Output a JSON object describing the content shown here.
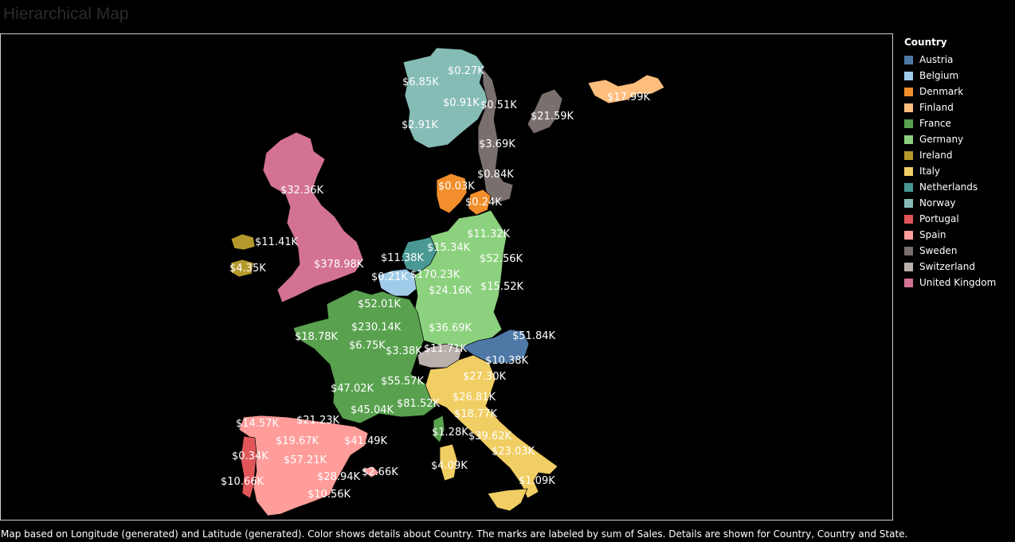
{
  "title": "Hierarchical Map",
  "legend": {
    "title": "Country",
    "items": [
      {
        "label": "Austria",
        "color": "#4e79a7"
      },
      {
        "label": "Belgium",
        "color": "#a0cbe8"
      },
      {
        "label": "Denmark",
        "color": "#f28e2b"
      },
      {
        "label": "Finland",
        "color": "#ffbe7d"
      },
      {
        "label": "France",
        "color": "#59a14f"
      },
      {
        "label": "Germany",
        "color": "#8cd17d"
      },
      {
        "label": "Ireland",
        "color": "#b6992d"
      },
      {
        "label": "Italy",
        "color": "#f1ce63"
      },
      {
        "label": "Netherlands",
        "color": "#499894"
      },
      {
        "label": "Norway",
        "color": "#86bcb6"
      },
      {
        "label": "Portugal",
        "color": "#e15759"
      },
      {
        "label": "Spain",
        "color": "#ff9d9a"
      },
      {
        "label": "Sweden",
        "color": "#79706e"
      },
      {
        "label": "Switzerland",
        "color": "#bab0ac"
      },
      {
        "label": "United Kingdom",
        "color": "#d37295"
      }
    ]
  },
  "map_labels": [
    {
      "country": "Finland",
      "text": "$17.99K"
    },
    {
      "country": "Norway",
      "text": "$0.27K"
    },
    {
      "country": "Norway",
      "text": "$6.85K"
    },
    {
      "country": "Norway",
      "text": "$0.91K"
    },
    {
      "country": "Norway",
      "text": "$2.91K"
    },
    {
      "country": "Sweden",
      "text": "$0.51K"
    },
    {
      "country": "Sweden",
      "text": "$21.59K"
    },
    {
      "country": "Sweden",
      "text": "$3.69K"
    },
    {
      "country": "Sweden",
      "text": "$0.84K"
    },
    {
      "country": "Denmark",
      "text": "$0.03K"
    },
    {
      "country": "Denmark",
      "text": "$0.24K"
    },
    {
      "country": "United Kingdom",
      "text": "$32.36K"
    },
    {
      "country": "United Kingdom",
      "text": "$378.98K"
    },
    {
      "country": "Ireland",
      "text": "$11.41K"
    },
    {
      "country": "Ireland",
      "text": "$4.35K"
    },
    {
      "country": "Netherlands",
      "text": "$11.38K"
    },
    {
      "country": "Germany",
      "text": "$15.34K"
    },
    {
      "country": "Germany",
      "text": "$11.32K"
    },
    {
      "country": "Germany",
      "text": "$52.56K"
    },
    {
      "country": "Belgium",
      "text": "$0.21K"
    },
    {
      "country": "Germany",
      "text": "$170.23K"
    },
    {
      "country": "Germany",
      "text": "$24.16K"
    },
    {
      "country": "Germany",
      "text": "$15.52K"
    },
    {
      "country": "France",
      "text": "$52.01K"
    },
    {
      "country": "France",
      "text": "$230.14K"
    },
    {
      "country": "Germany",
      "text": "$36.69K"
    },
    {
      "country": "France",
      "text": "$18.78K"
    },
    {
      "country": "France",
      "text": "$6.75K"
    },
    {
      "country": "France",
      "text": "$3.38K"
    },
    {
      "country": "Switzerland",
      "text": "$11.71K"
    },
    {
      "country": "Austria",
      "text": "$51.84K"
    },
    {
      "country": "Austria",
      "text": "$10.38K"
    },
    {
      "country": "Italy",
      "text": "$27.30K"
    },
    {
      "country": "France",
      "text": "$55.57K"
    },
    {
      "country": "France",
      "text": "$47.02K"
    },
    {
      "country": "Italy",
      "text": "$26.81K"
    },
    {
      "country": "France",
      "text": "$81.52K"
    },
    {
      "country": "France",
      "text": "$45.04K"
    },
    {
      "country": "Italy",
      "text": "$18.77K"
    },
    {
      "country": "Spain",
      "text": "$14.57K"
    },
    {
      "country": "Spain",
      "text": "$21.23K"
    },
    {
      "country": "France",
      "text": "$1.28K"
    },
    {
      "country": "Italy",
      "text": "$39.62K"
    },
    {
      "country": "Spain",
      "text": "$19.67K"
    },
    {
      "country": "Spain",
      "text": "$41.49K"
    },
    {
      "country": "Italy",
      "text": "$23.03K"
    },
    {
      "country": "Portugal",
      "text": "$0.34K"
    },
    {
      "country": "Spain",
      "text": "$57.21K"
    },
    {
      "country": "Italy",
      "text": "$4.09K"
    },
    {
      "country": "Spain",
      "text": "$28.94K"
    },
    {
      "country": "Spain",
      "text": "$2.66K"
    },
    {
      "country": "Portugal",
      "text": "$10.66K"
    },
    {
      "country": "Italy",
      "text": "$1.09K"
    },
    {
      "country": "Spain",
      "text": "$10.56K"
    }
  ],
  "caption": "Map based on Longitude (generated) and Latitude (generated).  Color shows details about Country.  The marks are labeled by sum of Sales.  Details are shown for Country, Country and State."
}
